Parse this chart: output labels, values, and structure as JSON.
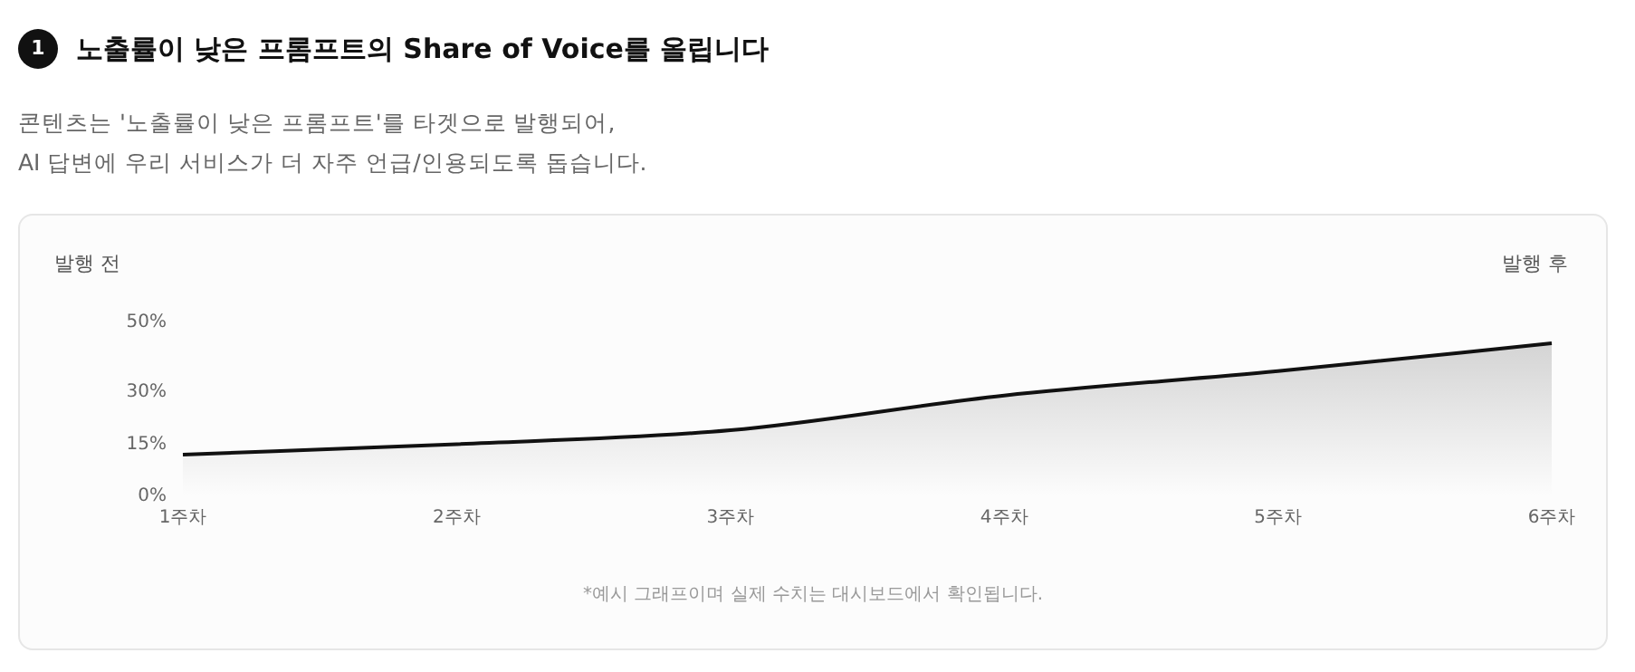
{
  "chart_data": {
    "type": "area",
    "title": "노출률이 낮은 프롬프트의 Share of Voice를 올립니다",
    "subtitle": "콘텐츠는 '노출률이 낮은 프롬프트'를 타겟으로 발행되어,\nAI 답변에 우리 서비스가 더 자주 언급/인용되도록 돕습니다.",
    "annotations": [
      "1",
      "발행 전",
      "발행 후",
      "*예시 그래프이며 실제 수치는 대시보드에서 확인됩니다."
    ],
    "categories": [
      "1주차",
      "2주차",
      "3주차",
      "4주차",
      "5주차",
      "6주차"
    ],
    "series": [
      {
        "color": "#111111",
        "values": [
          12,
          15,
          19,
          29,
          36,
          44
        ]
      }
    ],
    "ylim": [
      0,
      50
    ],
    "yticks": [
      {
        "value": 0,
        "label": "0%"
      },
      {
        "value": 15,
        "label": "15%"
      },
      {
        "value": 30,
        "label": "30%"
      },
      {
        "value": 50,
        "label": "50%"
      }
    ],
    "grid": false,
    "legend": false,
    "marker": "none",
    "line_style": "solid"
  }
}
